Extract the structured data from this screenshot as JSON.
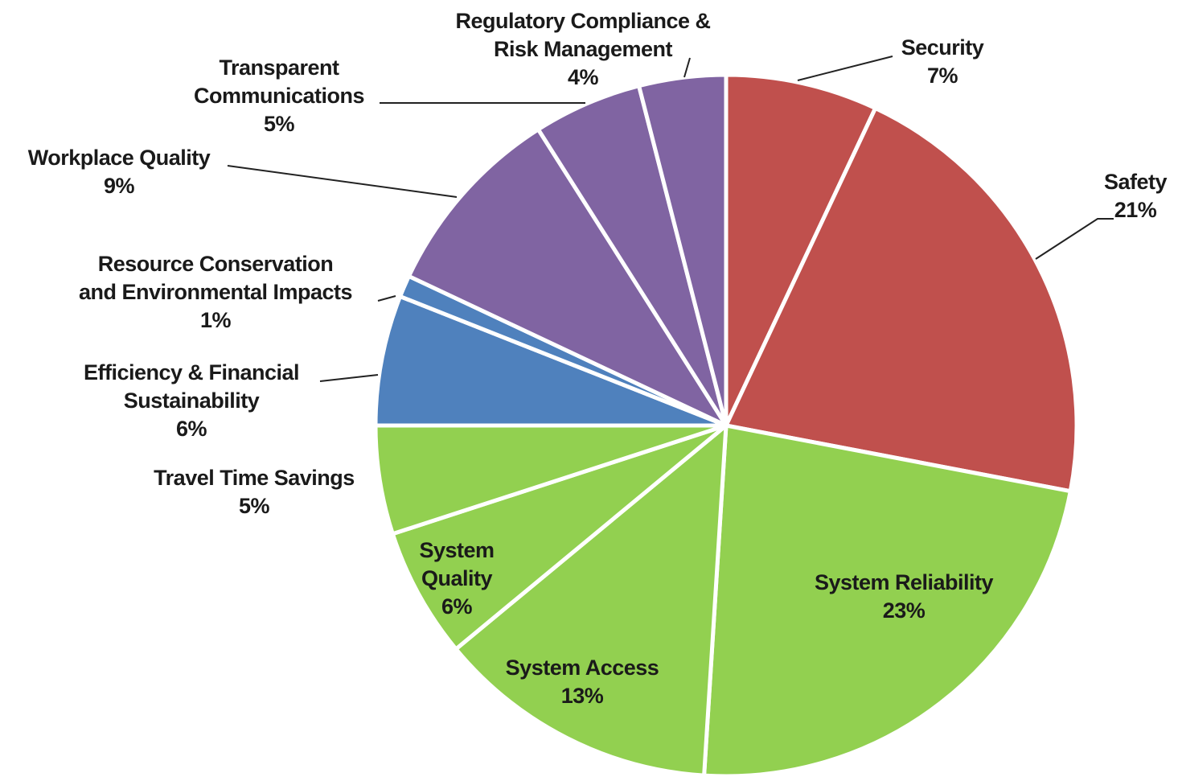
{
  "chart_data": {
    "type": "pie",
    "start_angle_deg": 0,
    "direction": "clockwise",
    "legend": "none",
    "slices": [
      {
        "label": [
          "Security"
        ],
        "pct": "7%",
        "value": 7,
        "color": "#c0504d"
      },
      {
        "label": [
          "Safety"
        ],
        "pct": "21%",
        "value": 21,
        "color": "#c0504d"
      },
      {
        "label": [
          "System Reliability"
        ],
        "pct": "23%",
        "value": 23,
        "color": "#92d050"
      },
      {
        "label": [
          "System Access"
        ],
        "pct": "13%",
        "value": 13,
        "color": "#92d050"
      },
      {
        "label": [
          "System",
          "Quality"
        ],
        "pct": "6%",
        "value": 6,
        "color": "#92d050"
      },
      {
        "label": [
          "Travel Time Savings"
        ],
        "pct": "5%",
        "value": 5,
        "color": "#92d050"
      },
      {
        "label": [
          "Efficiency & Financial",
          "Sustainability"
        ],
        "pct": "6%",
        "value": 6,
        "color": "#4f81bd"
      },
      {
        "label": [
          "Resource Conservation",
          "and Environmental Impacts"
        ],
        "pct": "1%",
        "value": 1,
        "color": "#4f81bd"
      },
      {
        "label": [
          "Workplace Quality"
        ],
        "pct": "9%",
        "value": 9,
        "color": "#8064a2"
      },
      {
        "label": [
          "Transparent",
          "Communications"
        ],
        "pct": "5%",
        "value": 5,
        "color": "#8064a2"
      },
      {
        "label": [
          "Regulatory Compliance &",
          "Risk Management"
        ],
        "pct": "4%",
        "value": 4,
        "color": "#8064a2"
      }
    ]
  }
}
